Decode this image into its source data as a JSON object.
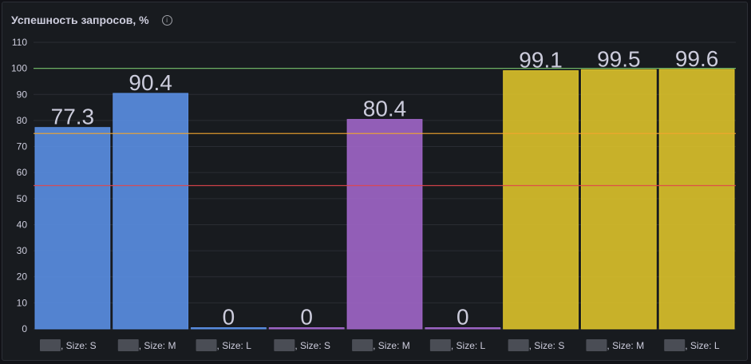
{
  "panel": {
    "title": "Успешность запросов, %",
    "info_icon": "info-icon"
  },
  "colors": {
    "background": "#181b1f",
    "grid": "#2a2d33",
    "blue": "#5a8fe3",
    "purple": "#a066c8",
    "yellow": "#dcc22a",
    "threshold_green": "#73bf69",
    "threshold_orange": "#f2a52c",
    "threshold_red": "#e0464b",
    "redact": "#4a4d55"
  },
  "chart_data": {
    "type": "bar",
    "title": "Успешность запросов, %",
    "ylim": [
      0,
      110
    ],
    "yticks": [
      0,
      10,
      20,
      30,
      40,
      50,
      60,
      70,
      80,
      90,
      100,
      110
    ],
    "grid": true,
    "thresholds": [
      {
        "value": 100,
        "color": "#73bf69"
      },
      {
        "value": 75,
        "color": "#f2a52c"
      },
      {
        "value": 55,
        "color": "#e0464b"
      }
    ],
    "categories": [
      ", Size: S",
      ", Size: M",
      ", Size: L",
      ", Size: S",
      ", Size: M",
      ", Size: L",
      ", Size: S",
      ", Size: M",
      ", Size: L"
    ],
    "values": [
      77.3,
      90.4,
      0,
      0,
      80.4,
      0,
      99.1,
      99.5,
      99.6
    ],
    "value_labels": [
      "77.3",
      "90.4",
      "0",
      "0",
      "80.4",
      "0",
      "99.1",
      "99.5",
      "99.6"
    ],
    "bar_colors": [
      "#5a8fe3",
      "#5a8fe3",
      "#5a8fe3",
      "#a066c8",
      "#a066c8",
      "#a066c8",
      "#dcc22a",
      "#dcc22a",
      "#dcc22a"
    ]
  }
}
